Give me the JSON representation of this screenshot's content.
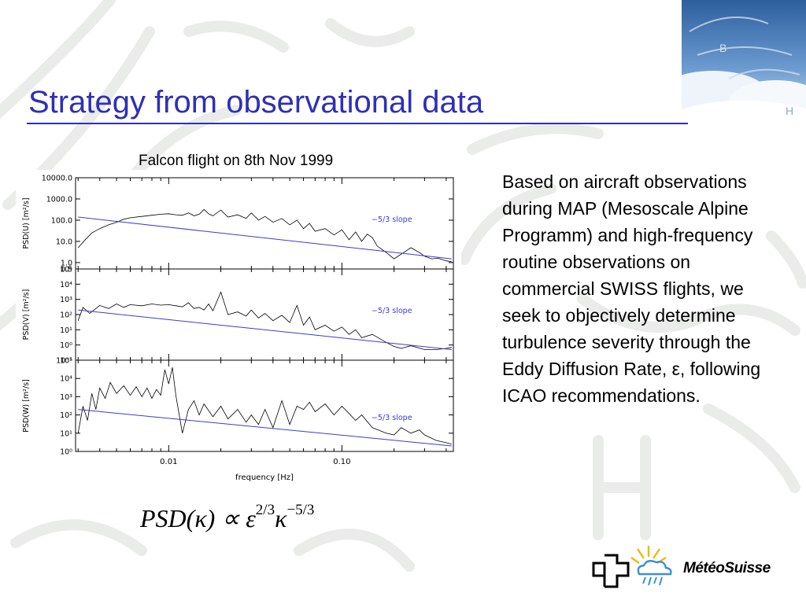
{
  "slide": {
    "title": "Strategy from observational data",
    "caption": "Falcon flight on 8th Nov 1999",
    "body": "Based on aircraft observations during MAP (Mesoscale Alpine Programm) and high-frequency routine observations on commercial SWISS flights, we seek to objectively determine turbulence severity through the Eddy Diffusion Rate, ε, following ICAO recommendations.",
    "formula": {
      "lhs": "PSD(κ)",
      "prop": "∝",
      "eps": "ε",
      "eps_exp": "2/3",
      "kappa": "κ",
      "kappa_exp": "−5/3"
    },
    "logo_text": "MétéoSuisse",
    "colors": {
      "title": "#2f2fb5",
      "slope_line": "#3a3ad8",
      "trace": "#000000"
    }
  },
  "chart_data": [
    {
      "type": "line",
      "panel": "U",
      "ylabel": "PSD(U) [m²/s]",
      "y_scale": "log",
      "ylim": [
        0.5,
        10000
      ],
      "y_ticks": [
        "10000.0",
        "1000.0",
        "100.0",
        "10.0",
        "1.0",
        "0.5"
      ],
      "y_tick_values": [
        10000,
        1000,
        100,
        10,
        1,
        0.5
      ],
      "xlim": [
        0.0029,
        0.44
      ],
      "x_scale": "log",
      "series": [
        {
          "values": [
            [
              0.003,
              5
            ],
            [
              0.0033,
              12
            ],
            [
              0.0036,
              25
            ],
            [
              0.004,
              40
            ],
            [
              0.0045,
              60
            ],
            [
              0.005,
              80
            ],
            [
              0.0055,
              110
            ],
            [
              0.006,
              130
            ],
            [
              0.007,
              150
            ],
            [
              0.008,
              170
            ],
            [
              0.009,
              190
            ],
            [
              0.01,
              200
            ],
            [
              0.011,
              180
            ],
            [
              0.012,
              170
            ],
            [
              0.013,
              220
            ],
            [
              0.014,
              160
            ],
            [
              0.015,
              190
            ],
            [
              0.016,
              320
            ],
            [
              0.017,
              200
            ],
            [
              0.018,
              160
            ],
            [
              0.02,
              300
            ],
            [
              0.022,
              140
            ],
            [
              0.025,
              180
            ],
            [
              0.028,
              120
            ],
            [
              0.03,
              220
            ],
            [
              0.033,
              100
            ],
            [
              0.036,
              150
            ],
            [
              0.04,
              80
            ],
            [
              0.045,
              120
            ],
            [
              0.05,
              60
            ],
            [
              0.055,
              100
            ],
            [
              0.06,
              40
            ],
            [
              0.065,
              70
            ],
            [
              0.07,
              30
            ],
            [
              0.08,
              40
            ],
            [
              0.09,
              20
            ],
            [
              0.1,
              35
            ],
            [
              0.11,
              12
            ],
            [
              0.12,
              28
            ],
            [
              0.13,
              10
            ],
            [
              0.14,
              22
            ],
            [
              0.15,
              15
            ],
            [
              0.16,
              6
            ],
            [
              0.18,
              3
            ],
            [
              0.2,
              1.5
            ],
            [
              0.22,
              2.5
            ],
            [
              0.25,
              5
            ],
            [
              0.28,
              3
            ],
            [
              0.3,
              2
            ],
            [
              0.33,
              1.5
            ],
            [
              0.36,
              1.6
            ],
            [
              0.4,
              1.2
            ],
            [
              0.43,
              1.1
            ]
          ]
        }
      ],
      "reference_line": {
        "label": "−5/3 slope",
        "points": [
          [
            0.003,
            140
          ],
          [
            0.43,
            1.5
          ]
        ]
      }
    },
    {
      "type": "line",
      "panel": "V",
      "ylabel": "PSD(V) [m²/s]",
      "y_scale": "log",
      "ylim": [
        0.1,
        100000
      ],
      "y_ticks": [
        "10⁵",
        "10⁴",
        "10³",
        "10²",
        "10¹",
        "10⁰",
        "10⁻¹"
      ],
      "y_tick_values": [
        100000,
        10000,
        1000,
        100,
        10,
        1,
        0.1
      ],
      "xlim": [
        0.0029,
        0.44
      ],
      "x_scale": "log",
      "series": [
        {
          "values": [
            [
              0.003,
              40
            ],
            [
              0.0032,
              300
            ],
            [
              0.0035,
              120
            ],
            [
              0.004,
              400
            ],
            [
              0.0045,
              250
            ],
            [
              0.005,
              500
            ],
            [
              0.0055,
              300
            ],
            [
              0.006,
              450
            ],
            [
              0.007,
              380
            ],
            [
              0.008,
              500
            ],
            [
              0.009,
              420
            ],
            [
              0.01,
              450
            ],
            [
              0.011,
              380
            ],
            [
              0.012,
              320
            ],
            [
              0.013,
              600
            ],
            [
              0.014,
              250
            ],
            [
              0.015,
              300
            ],
            [
              0.016,
              200
            ],
            [
              0.017,
              500
            ],
            [
              0.018,
              180
            ],
            [
              0.02,
              3000
            ],
            [
              0.022,
              100
            ],
            [
              0.025,
              150
            ],
            [
              0.028,
              80
            ],
            [
              0.03,
              200
            ],
            [
              0.033,
              60
            ],
            [
              0.036,
              120
            ],
            [
              0.04,
              40
            ],
            [
              0.045,
              90
            ],
            [
              0.05,
              30
            ],
            [
              0.055,
              400
            ],
            [
              0.06,
              20
            ],
            [
              0.065,
              70
            ],
            [
              0.07,
              10
            ],
            [
              0.08,
              20
            ],
            [
              0.09,
              8
            ],
            [
              0.1,
              15
            ],
            [
              0.11,
              5
            ],
            [
              0.12,
              10
            ],
            [
              0.13,
              3
            ],
            [
              0.15,
              5
            ],
            [
              0.18,
              1.5
            ],
            [
              0.2,
              0.8
            ],
            [
              0.22,
              0.6
            ],
            [
              0.25,
              0.9
            ],
            [
              0.3,
              0.5
            ],
            [
              0.35,
              0.5
            ],
            [
              0.4,
              0.6
            ],
            [
              0.43,
              0.7
            ]
          ]
        }
      ],
      "reference_line": {
        "label": "−5/3 slope",
        "points": [
          [
            0.003,
            200
          ],
          [
            0.43,
            0.5
          ]
        ]
      }
    },
    {
      "type": "line",
      "panel": "W",
      "ylabel": "PSD(W) [m²/s]",
      "y_scale": "log",
      "ylim": [
        1,
        100000
      ],
      "y_ticks": [
        "10⁵",
        "10⁴",
        "10³",
        "10²",
        "10¹",
        "10⁰"
      ],
      "y_tick_values": [
        100000,
        10000,
        1000,
        100,
        10,
        1
      ],
      "xlim": [
        0.0029,
        0.44
      ],
      "x_scale": "log",
      "x_ticks": [
        "0.01",
        "0.10"
      ],
      "x_tick_values": [
        0.01,
        0.1
      ],
      "xlabel": "frequency [Hz]",
      "series": [
        {
          "values": [
            [
              0.003,
              10
            ],
            [
              0.0032,
              300
            ],
            [
              0.0034,
              50
            ],
            [
              0.0036,
              1500
            ],
            [
              0.0038,
              200
            ],
            [
              0.004,
              3000
            ],
            [
              0.0043,
              800
            ],
            [
              0.0046,
              6000
            ],
            [
              0.005,
              1500
            ],
            [
              0.0055,
              4000
            ],
            [
              0.006,
              1200
            ],
            [
              0.0065,
              3500
            ],
            [
              0.007,
              1000
            ],
            [
              0.0075,
              3000
            ],
            [
              0.008,
              800
            ],
            [
              0.0085,
              2500
            ],
            [
              0.009,
              1200
            ],
            [
              0.0095,
              30000
            ],
            [
              0.01,
              5000
            ],
            [
              0.0105,
              40000
            ],
            [
              0.011,
              1200
            ],
            [
              0.012,
              10
            ],
            [
              0.013,
              200
            ],
            [
              0.014,
              600
            ],
            [
              0.015,
              100
            ],
            [
              0.016,
              400
            ],
            [
              0.018,
              80
            ],
            [
              0.02,
              300
            ],
            [
              0.022,
              60
            ],
            [
              0.025,
              200
            ],
            [
              0.028,
              40
            ],
            [
              0.03,
              100
            ],
            [
              0.033,
              30
            ],
            [
              0.036,
              200
            ],
            [
              0.04,
              20
            ],
            [
              0.045,
              600
            ],
            [
              0.05,
              30
            ],
            [
              0.055,
              300
            ],
            [
              0.06,
              200
            ],
            [
              0.065,
              500
            ],
            [
              0.07,
              150
            ],
            [
              0.08,
              400
            ],
            [
              0.09,
              100
            ],
            [
              0.1,
              300
            ],
            [
              0.11,
              120
            ],
            [
              0.12,
              50
            ],
            [
              0.13,
              100
            ],
            [
              0.15,
              20
            ],
            [
              0.18,
              10
            ],
            [
              0.2,
              8
            ],
            [
              0.22,
              20
            ],
            [
              0.25,
              10
            ],
            [
              0.28,
              15
            ],
            [
              0.3,
              8
            ],
            [
              0.35,
              4
            ],
            [
              0.4,
              3
            ],
            [
              0.43,
              2.5
            ]
          ]
        }
      ],
      "reference_line": {
        "label": "−5/3 slope",
        "points": [
          [
            0.003,
            200
          ],
          [
            0.43,
            2
          ]
        ]
      }
    }
  ]
}
